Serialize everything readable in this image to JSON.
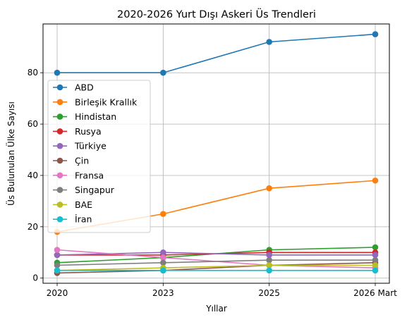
{
  "chart_data": {
    "type": "line",
    "title": "2020-2026 Yurt Dışı Askeri Üs Trendleri",
    "xlabel": "Yıllar",
    "ylabel": "Üs Bulunulan Ülke Sayısı",
    "categories": [
      "2020",
      "2023",
      "2025",
      "2026 Mart"
    ],
    "ylim": [
      -2,
      99
    ],
    "yticks": [
      0,
      20,
      40,
      60,
      80
    ],
    "grid": true,
    "legend_position": "center-left",
    "series": [
      {
        "name": "ABD",
        "color": "#1f77b4",
        "values": [
          80,
          80,
          92,
          95
        ]
      },
      {
        "name": "Birleşik Krallık",
        "color": "#ff7f0e",
        "values": [
          18,
          25,
          35,
          38
        ]
      },
      {
        "name": "Hindistan",
        "color": "#2ca02c",
        "values": [
          6,
          8,
          11,
          12
        ]
      },
      {
        "name": "Rusya",
        "color": "#d62728",
        "values": [
          9,
          9,
          10,
          10
        ]
      },
      {
        "name": "Türkiye",
        "color": "#9467bd",
        "values": [
          9,
          10,
          9,
          9
        ]
      },
      {
        "name": "Çin",
        "color": "#8c564b",
        "values": [
          2,
          3,
          5,
          6
        ]
      },
      {
        "name": "Fransa",
        "color": "#e377c2",
        "values": [
          11,
          8,
          5,
          4
        ]
      },
      {
        "name": "Singapur",
        "color": "#7f7f7f",
        "values": [
          5,
          6,
          7,
          7
        ]
      },
      {
        "name": "BAE",
        "color": "#bcbd22",
        "values": [
          3,
          4,
          5,
          5
        ]
      },
      {
        "name": "İran",
        "color": "#17becf",
        "values": [
          3,
          3,
          3,
          3
        ]
      }
    ]
  }
}
